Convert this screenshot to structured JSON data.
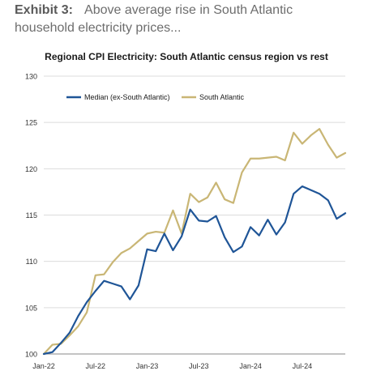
{
  "caption": {
    "label": "Exhibit 3:",
    "text": "Above average rise in South Atlantic household electricity prices..."
  },
  "chart_data": {
    "type": "line",
    "title": "Regional CPI Electricity: South Atlantic census region vs rest",
    "xlabel": "",
    "ylabel": "",
    "ylim": [
      100,
      130
    ],
    "yticks": [
      100,
      105,
      110,
      115,
      120,
      125,
      130
    ],
    "x": [
      "Jan-22",
      "Feb-22",
      "Mar-22",
      "Apr-22",
      "May-22",
      "Jun-22",
      "Jul-22",
      "Aug-22",
      "Sep-22",
      "Oct-22",
      "Nov-22",
      "Dec-22",
      "Jan-23",
      "Feb-23",
      "Mar-23",
      "Apr-23",
      "May-23",
      "Jun-23",
      "Jul-23",
      "Aug-23",
      "Sep-23",
      "Oct-23",
      "Nov-23",
      "Dec-23",
      "Jan-24",
      "Feb-24",
      "Mar-24",
      "Apr-24",
      "May-24",
      "Jun-24",
      "Jul-24",
      "Aug-24",
      "Sep-24",
      "Oct-24",
      "Nov-24",
      "Dec-24"
    ],
    "xtick_labels": [
      "Jan-22",
      "Jul-22",
      "Jan-23",
      "Jul-23",
      "Jan-24",
      "Jul-24"
    ],
    "xtick_indices": [
      0,
      6,
      12,
      18,
      24,
      30
    ],
    "grid": "horizontal",
    "legend_position": "top-left",
    "series": [
      {
        "name": "Median (ex-South Atlantic)",
        "color": "#1f5597",
        "values": [
          100.0,
          100.2,
          101.2,
          102.3,
          104.1,
          105.6,
          106.8,
          107.9,
          107.6,
          107.3,
          105.9,
          107.4,
          111.3,
          111.1,
          113.0,
          111.2,
          112.7,
          115.6,
          114.4,
          114.3,
          114.9,
          112.6,
          111.0,
          111.6,
          113.7,
          112.8,
          114.5,
          112.9,
          114.2,
          117.3,
          118.1,
          117.7,
          117.3,
          116.6,
          114.6,
          115.2
        ]
      },
      {
        "name": "South Atlantic",
        "color": "#c9b675",
        "values": [
          100.0,
          101.0,
          101.1,
          102.0,
          103.0,
          104.5,
          108.5,
          108.6,
          109.9,
          110.9,
          111.4,
          112.2,
          113.0,
          113.2,
          113.1,
          115.5,
          113.0,
          117.3,
          116.4,
          116.9,
          118.5,
          116.7,
          116.3,
          119.6,
          121.1,
          121.1,
          121.2,
          121.3,
          120.9,
          123.9,
          122.7,
          123.6,
          124.3,
          122.6,
          121.2,
          121.7
        ]
      }
    ]
  }
}
